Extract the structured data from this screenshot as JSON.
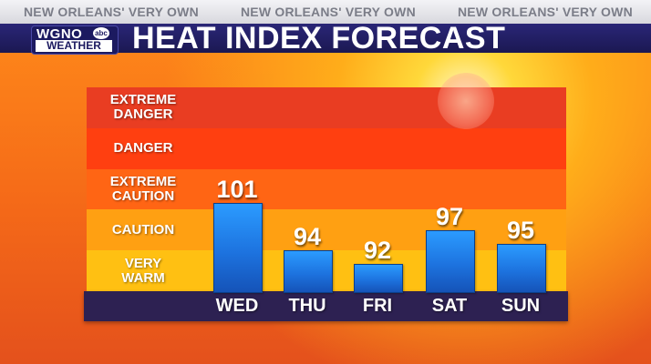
{
  "ticker": [
    "NEW ORLEANS' VERY OWN",
    "NEW ORLEANS' VERY OWN",
    "NEW ORLEANS' VERY OWN"
  ],
  "logo": {
    "station": "WGNO",
    "network": "abc",
    "sub": "WEATHER"
  },
  "title": "HEAT INDEX FORECAST",
  "chart_data": {
    "type": "bar",
    "title": "HEAT INDEX FORECAST",
    "categories": [
      "WED",
      "THU",
      "FRI",
      "SAT",
      "SUN"
    ],
    "values": [
      101,
      94,
      92,
      97,
      95
    ],
    "ylim": [
      88,
      118
    ],
    "bands": [
      {
        "label": "EXTREME\nDANGER",
        "min": 112,
        "max": 118,
        "color": "#e93d22"
      },
      {
        "label": "DANGER",
        "min": 106,
        "max": 112,
        "color": "#ff3f10"
      },
      {
        "label": "EXTREME\nCAUTION",
        "min": 100,
        "max": 106,
        "color": "#ff6514"
      },
      {
        "label": "CAUTION",
        "min": 94,
        "max": 100,
        "color": "#ffa012"
      },
      {
        "label": "VERY\nWARM",
        "min": 88,
        "max": 94,
        "color": "#ffc012"
      }
    ],
    "bar_color": "#2b8ef0",
    "grid": false,
    "legend": "none"
  }
}
